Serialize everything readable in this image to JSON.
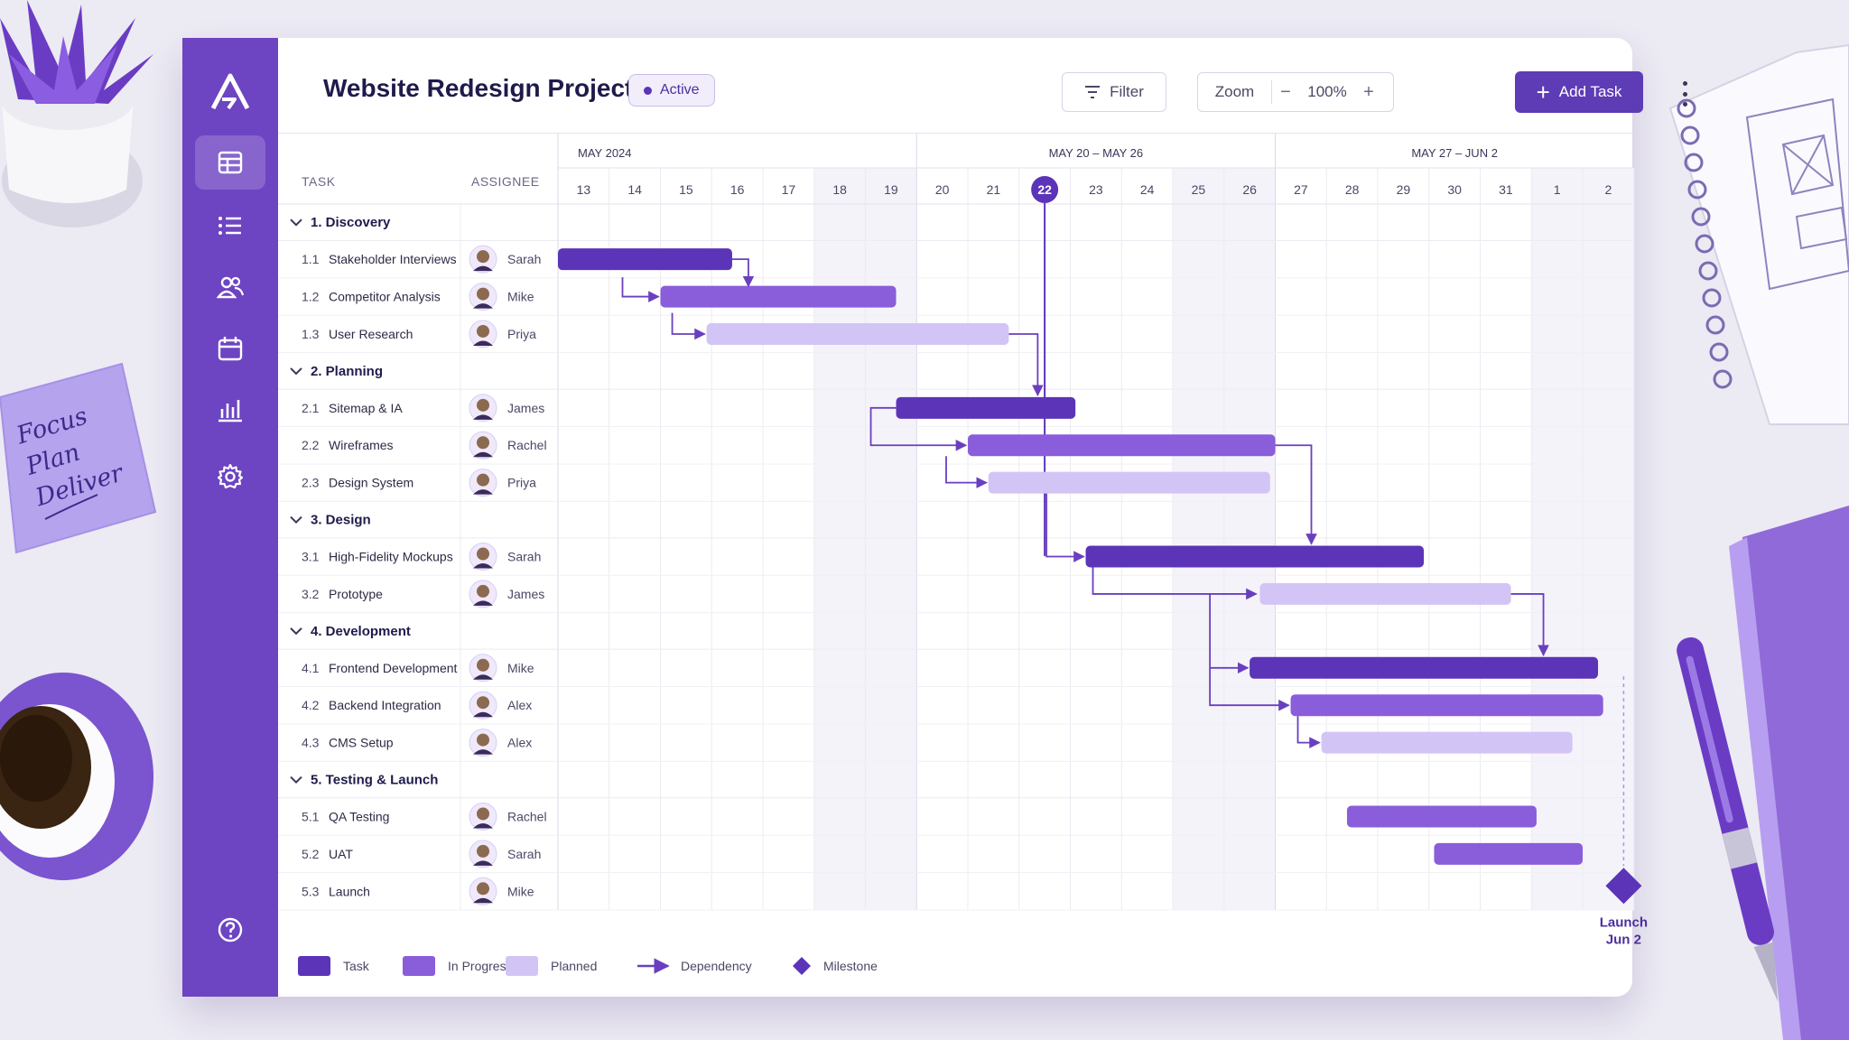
{
  "app": {
    "title": "Website Redesign Project",
    "status": "Active",
    "accent": "#6d44c2"
  },
  "header": {
    "filter_label": "Filter",
    "zoom_label": "Zoom",
    "zoom_minus": "−",
    "zoom_value": "100%",
    "zoom_plus": "+",
    "add_task_label": "Add Task",
    "add_task_icon": "+"
  },
  "sidebar": {
    "items": [
      {
        "icon": "grid-icon",
        "active": true
      },
      {
        "icon": "list-icon",
        "active": false
      },
      {
        "icon": "users-icon",
        "active": false
      },
      {
        "icon": "calendar-icon",
        "active": false
      },
      {
        "icon": "bar-chart-icon",
        "active": false
      },
      {
        "icon": "gear-icon",
        "active": false
      }
    ],
    "help_icon": "help-icon"
  },
  "columns": {
    "task": "TASK",
    "assignee": "ASSIGNEE"
  },
  "timeline": {
    "months": [
      "MAY 2024",
      "MAY 20  –  MAY 26",
      "MAY 27  –  JUN 2"
    ],
    "days": [
      "13",
      "14",
      "15",
      "16",
      "17",
      "18",
      "19",
      "20",
      "21",
      "22",
      "23",
      "24",
      "25",
      "26",
      "27",
      "28",
      "29",
      "30",
      "31",
      "1",
      "2"
    ],
    "today_index": 9,
    "weekend_indices": [
      5,
      6,
      12,
      13,
      19,
      20
    ]
  },
  "groups": [
    {
      "label": "1.  Discovery",
      "tasks": [
        {
          "id": "1.1",
          "name": "Stakeholder Interviews",
          "assignee": "Sarah",
          "start": 0,
          "end": 3.4,
          "status": "task"
        },
        {
          "id": "1.2",
          "name": "Competitor Analysis",
          "assignee": "Mike",
          "start": 2.0,
          "end": 6.6,
          "status": "inprogress"
        },
        {
          "id": "1.3",
          "name": "User Research",
          "assignee": "Priya",
          "start": 2.9,
          "end": 8.8,
          "status": "planned"
        }
      ]
    },
    {
      "label": "2.  Planning",
      "tasks": [
        {
          "id": "2.1",
          "name": "Sitemap & IA",
          "assignee": "James",
          "start": 6.6,
          "end": 10.1,
          "status": "task"
        },
        {
          "id": "2.2",
          "name": "Wireframes",
          "assignee": "Rachel",
          "start": 8.0,
          "end": 14.0,
          "status": "inprogress"
        },
        {
          "id": "2.3",
          "name": "Design System",
          "assignee": "Priya",
          "start": 8.4,
          "end": 13.9,
          "status": "planned"
        }
      ]
    },
    {
      "label": "3.  Design",
      "tasks": [
        {
          "id": "3.1",
          "name": "High-Fidelity Mockups",
          "assignee": "Sarah",
          "start": 10.3,
          "end": 16.9,
          "status": "task"
        },
        {
          "id": "3.2",
          "name": "Prototype",
          "assignee": "James",
          "start": 13.7,
          "end": 18.6,
          "status": "planned"
        }
      ]
    },
    {
      "label": "4.  Development",
      "tasks": [
        {
          "id": "4.1",
          "name": "Frontend Development",
          "assignee": "Mike",
          "start": 13.5,
          "end": 20.3,
          "status": "task"
        },
        {
          "id": "4.2",
          "name": "Backend Integration",
          "assignee": "Alex",
          "start": 14.3,
          "end": 20.4,
          "status": "inprogress"
        },
        {
          "id": "4.3",
          "name": "CMS Setup",
          "assignee": "Alex",
          "start": 14.9,
          "end": 19.8,
          "status": "planned"
        }
      ]
    },
    {
      "label": "5.  Testing & Launch",
      "tasks": [
        {
          "id": "5.1",
          "name": "QA Testing",
          "assignee": "Rachel",
          "start": 15.4,
          "end": 19.1,
          "status": "inprogress"
        },
        {
          "id": "5.2",
          "name": "UAT",
          "assignee": "Sarah",
          "start": 17.1,
          "end": 20.0,
          "status": "inprogress"
        },
        {
          "id": "5.3",
          "name": "Launch",
          "assignee": "Mike",
          "start": 20.4,
          "end": 20.4,
          "status": "milestone"
        }
      ]
    }
  ],
  "milestone": {
    "label_line1": "Launch",
    "label_line2": "Jun 2"
  },
  "legend": [
    {
      "key": "task",
      "label": "Task"
    },
    {
      "key": "inprogress",
      "label": "In Progress"
    },
    {
      "key": "planned",
      "label": "Planned"
    },
    {
      "key": "dependency",
      "label": "Dependency"
    },
    {
      "key": "milestone",
      "label": "Milestone"
    }
  ],
  "colors": {
    "task": "#5b34b8",
    "inprogress": "#8a5ddb",
    "planned": "#d3c4f6",
    "dependency": "#6a3fbf",
    "milestone": "#5b34b8",
    "weekend": "#f5f3fa"
  },
  "sticky_note": {
    "lines": [
      "Focus",
      "Plan",
      "Deliver"
    ]
  }
}
